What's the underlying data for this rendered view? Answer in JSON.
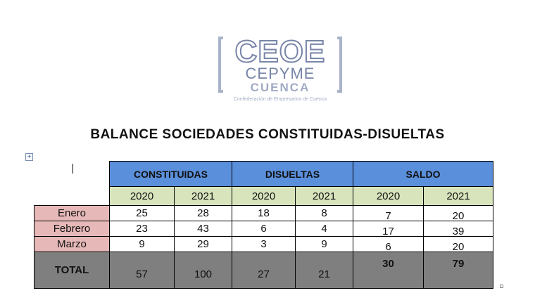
{
  "logo": {
    "line1": "CEOE",
    "line2": "CEPYME",
    "line3": "CUENCA",
    "tagline": "Confederación de Empresarios de Cuenca"
  },
  "title": "BALANCE SOCIEDADES CONSTITUIDAS-DISUELTAS",
  "table": {
    "groups": [
      "CONSTITUIDAS",
      "DISUELTAS",
      "SALDO"
    ],
    "years": [
      "2020",
      "2021",
      "2020",
      "2021",
      "2020",
      "2021"
    ],
    "rows": [
      {
        "label": "Enero",
        "values": [
          "25",
          "28",
          "18",
          "8",
          "7",
          "20"
        ]
      },
      {
        "label": "Febrero",
        "values": [
          "23",
          "43",
          "6",
          "4",
          "17",
          "39"
        ]
      },
      {
        "label": "Marzo",
        "values": [
          "9",
          "29",
          "3",
          "9",
          "6",
          "20"
        ]
      }
    ],
    "total": {
      "label": "TOTAL",
      "values": [
        "57",
        "100",
        "27",
        "21",
        "30",
        "79"
      ]
    }
  },
  "colors": {
    "header": "#5a8fdb",
    "year_row": "#d7e4bc",
    "month_label": "#e6b9b8",
    "total_row": "#7f7f7f"
  }
}
